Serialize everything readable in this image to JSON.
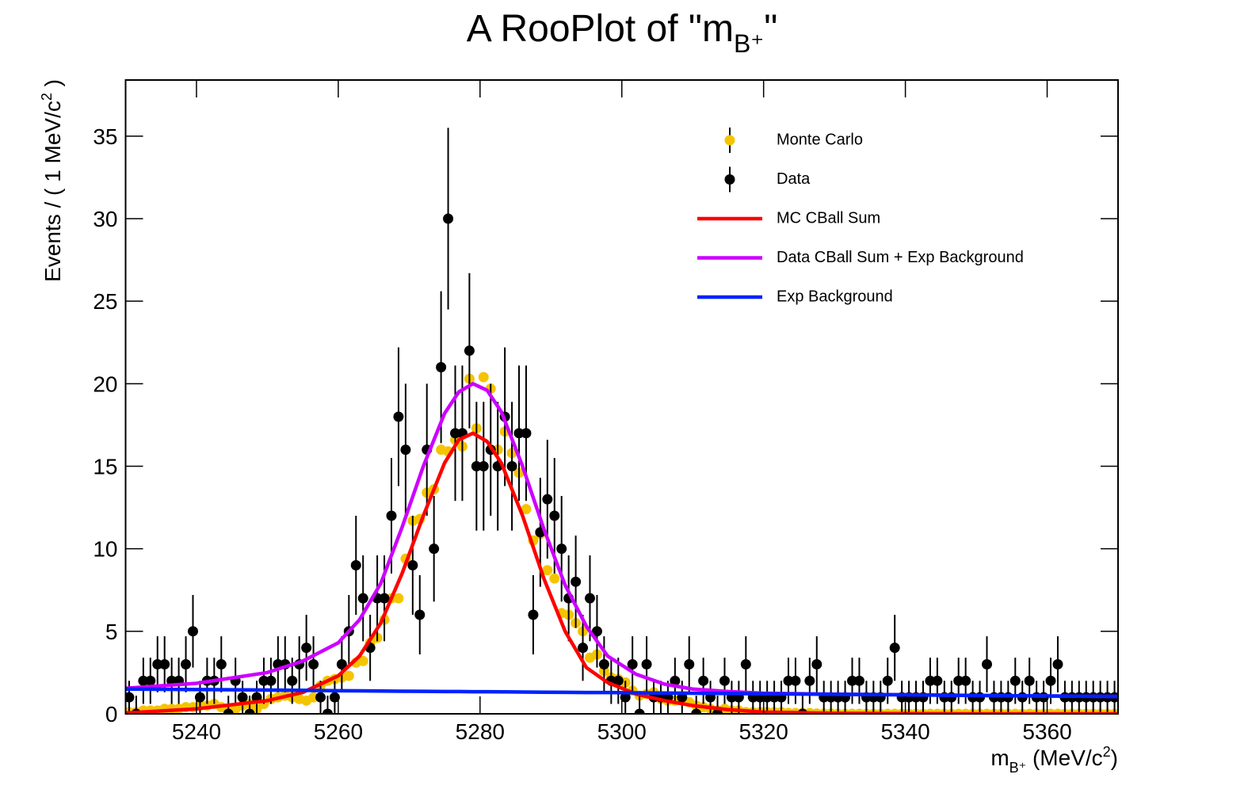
{
  "chart_data": {
    "type": "scatter",
    "title": [
      "A RooPlot of \"m",
      "B⁺",
      "\""
    ],
    "x_label": [
      "m",
      "B⁺",
      " (MeV/c",
      "2",
      ")"
    ],
    "y_label": [
      "Events / ( 1 MeV/c",
      "2",
      " )"
    ],
    "xlim": [
      5230,
      5370
    ],
    "ylim": [
      0,
      38.4
    ],
    "xticks": [
      5240,
      5260,
      5280,
      5300,
      5320,
      5340,
      5360
    ],
    "yticks": [
      0,
      5,
      10,
      15,
      20,
      25,
      30,
      35
    ],
    "legend": "upper right",
    "x": [
      5230.5,
      5231.5,
      5232.5,
      5233.5,
      5234.5,
      5235.5,
      5236.5,
      5237.5,
      5238.5,
      5239.5,
      5240.5,
      5241.5,
      5242.5,
      5243.5,
      5244.5,
      5245.5,
      5246.5,
      5247.5,
      5248.5,
      5249.5,
      5250.5,
      5251.5,
      5252.5,
      5253.5,
      5254.5,
      5255.5,
      5256.5,
      5257.5,
      5258.5,
      5259.5,
      5260.5,
      5261.5,
      5262.5,
      5263.5,
      5264.5,
      5265.5,
      5266.5,
      5267.5,
      5268.5,
      5269.5,
      5270.5,
      5271.5,
      5272.5,
      5273.5,
      5274.5,
      5275.5,
      5276.5,
      5277.5,
      5278.5,
      5279.5,
      5280.5,
      5281.5,
      5282.5,
      5283.5,
      5284.5,
      5285.5,
      5286.5,
      5287.5,
      5288.5,
      5289.5,
      5290.5,
      5291.5,
      5292.5,
      5293.5,
      5294.5,
      5295.5,
      5296.5,
      5297.5,
      5298.5,
      5299.5,
      5300.5,
      5301.5,
      5302.5,
      5303.5,
      5304.5,
      5305.5,
      5306.5,
      5307.5,
      5308.5,
      5309.5,
      5310.5,
      5311.5,
      5312.5,
      5313.5,
      5314.5,
      5315.5,
      5316.5,
      5317.5,
      5318.5,
      5319.5,
      5320.5,
      5321.5,
      5322.5,
      5323.5,
      5324.5,
      5325.5,
      5326.5,
      5327.5,
      5328.5,
      5329.5,
      5330.5,
      5331.5,
      5332.5,
      5333.5,
      5334.5,
      5335.5,
      5336.5,
      5337.5,
      5338.5,
      5339.5,
      5340.5,
      5341.5,
      5342.5,
      5343.5,
      5344.5,
      5345.5,
      5346.5,
      5347.5,
      5348.5,
      5349.5,
      5350.5,
      5351.5,
      5352.5,
      5353.5,
      5354.5,
      5355.5,
      5356.5,
      5357.5,
      5358.5,
      5359.5,
      5360.5,
      5361.5,
      5362.5,
      5363.5,
      5364.5,
      5365.5,
      5366.5,
      5367.5,
      5368.5,
      5369.5
    ],
    "series": [
      {
        "name": "Monte Carlo",
        "type": "points",
        "color": "#f5c400",
        "values": [
          0.1,
          0.1,
          0.2,
          0.2,
          0.2,
          0.3,
          0.3,
          0.3,
          0.4,
          0.4,
          0.5,
          0.5,
          0.6,
          0.4,
          0.3,
          0.3,
          0.5,
          0.6,
          0.3,
          0.6,
          0.9,
          1.0,
          1.1,
          1.0,
          0.9,
          0.8,
          1.0,
          1.7,
          2.0,
          2.1,
          2.2,
          2.3,
          3.1,
          3.2,
          4.3,
          4.6,
          5.7,
          7.0,
          7.0,
          9.4,
          11.7,
          11.8,
          13.4,
          13.6,
          16.0,
          15.9,
          16.6,
          16.2,
          20.3,
          17.3,
          20.4,
          19.7,
          16.0,
          17.1,
          15.8,
          14.6,
          12.4,
          10.5,
          10.9,
          8.7,
          8.2,
          6.1,
          6.0,
          5.5,
          5.0,
          3.4,
          3.6,
          2.6,
          2.2,
          2.1,
          1.9,
          1.4,
          1.1,
          1.2,
          1.3,
          0.9,
          0.8,
          0.8,
          0.9,
          0.7,
          0.5,
          0.4,
          0.3,
          0.2,
          0.3,
          0.2,
          0.2,
          0.1,
          0.1,
          0.1,
          0.1,
          0.1,
          0.1,
          0.05,
          0.05,
          0.05,
          0.05,
          0.02,
          0.02,
          0.02,
          0,
          0,
          0,
          0,
          0,
          0,
          0,
          0,
          0,
          0,
          0,
          0,
          0,
          0,
          0,
          0,
          0,
          0,
          0,
          0,
          0,
          0,
          0,
          0,
          0,
          0,
          0,
          0,
          0,
          0,
          0,
          0,
          0,
          0,
          0,
          0,
          0,
          0,
          0,
          0
        ]
      },
      {
        "name": "Data",
        "type": "points",
        "color": "#000000",
        "values": [
          1,
          0,
          2,
          2,
          3,
          3,
          2,
          2,
          3,
          5,
          1,
          2,
          2,
          3,
          0,
          2,
          1,
          0,
          1,
          2,
          2,
          3,
          3,
          2,
          3,
          4,
          3,
          1,
          0,
          1,
          3,
          5,
          9,
          7,
          4,
          7,
          7,
          12,
          18,
          16,
          9,
          6,
          16,
          10,
          21,
          30,
          17,
          17,
          22,
          15,
          15,
          16,
          15,
          18,
          15,
          17,
          17,
          6,
          11,
          13,
          12,
          10,
          7,
          8,
          4,
          7,
          5,
          3,
          2,
          2,
          1,
          3,
          0,
          3,
          1,
          1,
          1,
          2,
          1,
          3,
          0,
          2,
          1,
          0,
          2,
          1,
          1,
          3,
          1,
          1,
          1,
          1,
          1,
          2,
          2,
          0,
          2,
          3,
          1,
          1,
          1,
          1,
          2,
          2,
          1,
          1,
          1,
          2,
          4,
          1,
          1,
          1,
          1,
          2,
          2,
          1,
          1,
          2,
          2,
          1,
          1,
          3,
          1,
          1,
          1,
          2,
          1,
          2,
          1,
          1,
          2,
          3,
          1,
          1,
          1,
          1,
          1,
          1,
          1,
          1
        ],
        "errors": [
          1,
          1.1,
          1.4,
          1.4,
          1.7,
          1.7,
          1.4,
          1.4,
          1.7,
          2.2,
          1,
          1.4,
          1.4,
          1.7,
          1.1,
          1.4,
          1,
          1.1,
          1,
          1.4,
          1.4,
          1.7,
          1.7,
          1.4,
          1.7,
          2,
          1.7,
          1,
          1.1,
          1,
          1.7,
          2.2,
          3,
          2.6,
          2,
          2.6,
          2.6,
          3.5,
          4.2,
          4,
          3,
          2.4,
          4,
          3.2,
          4.6,
          5.5,
          4.1,
          4.1,
          4.7,
          3.9,
          3.9,
          4,
          3.9,
          4.2,
          3.9,
          4.1,
          4.1,
          2.4,
          3.3,
          3.6,
          3.5,
          3.2,
          2.6,
          2.8,
          2,
          2.6,
          2.2,
          1.7,
          1.4,
          1.4,
          1,
          1.7,
          1.1,
          1.7,
          1,
          1,
          1,
          1.4,
          1,
          1.7,
          1.1,
          1.4,
          1,
          1.1,
          1.4,
          1,
          1,
          1.7,
          1,
          1,
          1,
          1,
          1,
          1.4,
          1.4,
          1.1,
          1.4,
          1.7,
          1,
          1,
          1,
          1,
          1.4,
          1.4,
          1,
          1,
          1,
          1.4,
          2,
          1,
          1,
          1,
          1,
          1.4,
          1.4,
          1,
          1,
          1.4,
          1.4,
          1,
          1,
          1.7,
          1,
          1,
          1,
          1.4,
          1,
          1.4,
          1,
          1,
          1.4,
          1.7,
          1,
          1,
          1,
          1,
          1,
          1,
          1,
          1
        ]
      },
      {
        "name": "MC CBall Sum",
        "type": "line",
        "color": "#ff0000",
        "x": [
          5230,
          5240,
          5250,
          5255,
          5260,
          5263,
          5266,
          5269,
          5272,
          5275,
          5277,
          5279,
          5281,
          5283,
          5286,
          5289,
          5292,
          5295,
          5298,
          5302,
          5306,
          5310,
          5315,
          5320,
          5330,
          5340,
          5350,
          5360,
          5370
        ],
        "values": [
          0.05,
          0.3,
          0.8,
          1.3,
          2.3,
          3.5,
          5.5,
          8.5,
          12,
          15.2,
          16.6,
          17,
          16.5,
          15.2,
          12,
          8.2,
          5,
          2.8,
          1.9,
          1.2,
          0.8,
          0.5,
          0.25,
          0.1,
          0.03,
          0.01,
          0,
          0,
          0
        ]
      },
      {
        "name": "Data CBall Sum + Exp Background",
        "type": "line",
        "color": "#cc00ff",
        "x": [
          5230,
          5240,
          5250,
          5255,
          5260,
          5263,
          5266,
          5269,
          5272,
          5275,
          5277,
          5279,
          5281,
          5283,
          5286,
          5289,
          5292,
          5295,
          5298,
          5302,
          5306,
          5310,
          5315,
          5320,
          5330,
          5340,
          5350,
          5360,
          5370
        ],
        "values": [
          1.55,
          1.85,
          2.5,
          3.2,
          4.3,
          5.7,
          7.9,
          11.3,
          15,
          18.2,
          19.5,
          20,
          19.6,
          18.3,
          15,
          11.2,
          7.8,
          5.3,
          3.5,
          2.4,
          1.8,
          1.5,
          1.35,
          1.25,
          1.19,
          1.15,
          1.11,
          1.08,
          1.05
        ]
      },
      {
        "name": "Exp Background",
        "type": "line",
        "color": "#0022ff",
        "x": [
          5230,
          5240,
          5250,
          5255,
          5260,
          5263,
          5266,
          5269,
          5272,
          5275,
          5277,
          5279,
          5281,
          5283,
          5286,
          5289,
          5292,
          5295,
          5298,
          5302,
          5306,
          5310,
          5315,
          5320,
          5330,
          5340,
          5350,
          5360,
          5370
        ],
        "values": [
          1.5,
          1.47,
          1.44,
          1.42,
          1.4,
          1.39,
          1.38,
          1.37,
          1.36,
          1.35,
          1.35,
          1.34,
          1.34,
          1.33,
          1.32,
          1.31,
          1.3,
          1.29,
          1.29,
          1.27,
          1.26,
          1.25,
          1.23,
          1.21,
          1.18,
          1.15,
          1.11,
          1.08,
          1.05
        ]
      }
    ]
  }
}
